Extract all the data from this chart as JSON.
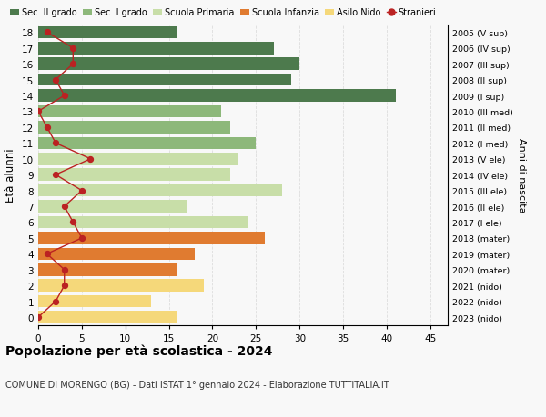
{
  "ages": [
    0,
    1,
    2,
    3,
    4,
    5,
    6,
    7,
    8,
    9,
    10,
    11,
    12,
    13,
    14,
    15,
    16,
    17,
    18
  ],
  "right_labels": [
    "2023 (nido)",
    "2022 (nido)",
    "2021 (nido)",
    "2020 (mater)",
    "2019 (mater)",
    "2018 (mater)",
    "2017 (I ele)",
    "2016 (II ele)",
    "2015 (III ele)",
    "2014 (IV ele)",
    "2013 (V ele)",
    "2012 (I med)",
    "2011 (II med)",
    "2010 (III med)",
    "2009 (I sup)",
    "2008 (II sup)",
    "2007 (III sup)",
    "2006 (IV sup)",
    "2005 (V sup)"
  ],
  "bar_values": [
    16,
    13,
    19,
    16,
    18,
    26,
    24,
    17,
    28,
    22,
    23,
    25,
    22,
    21,
    41,
    29,
    30,
    27,
    16
  ],
  "bar_colors": [
    "#f5d87a",
    "#f5d87a",
    "#f5d87a",
    "#e07b30",
    "#e07b30",
    "#e07b30",
    "#c8dea8",
    "#c8dea8",
    "#c8dea8",
    "#c8dea8",
    "#c8dea8",
    "#8db87a",
    "#8db87a",
    "#8db87a",
    "#4d7a4d",
    "#4d7a4d",
    "#4d7a4d",
    "#4d7a4d",
    "#4d7a4d"
  ],
  "stranieri_values": [
    0,
    2,
    3,
    3,
    1,
    5,
    4,
    3,
    5,
    2,
    6,
    2,
    1,
    0,
    3,
    2,
    4,
    4,
    1
  ],
  "legend_labels": [
    "Sec. II grado",
    "Sec. I grado",
    "Scuola Primaria",
    "Scuola Infanzia",
    "Asilo Nido",
    "Stranieri"
  ],
  "legend_colors": [
    "#4d7a4d",
    "#8db87a",
    "#c8dea8",
    "#e07b30",
    "#f5d87a",
    "#bb2222"
  ],
  "title_bold": "Popolazione per età scolastica - 2024",
  "subtitle": "COMUNE DI MORENGO (BG) - Dati ISTAT 1° gennaio 2024 - Elaborazione TUTTITALIA.IT",
  "ylabel": "Età alunni",
  "right_ylabel": "Anni di nascita",
  "xlim": [
    0,
    47
  ],
  "xticks": [
    0,
    5,
    10,
    15,
    20,
    25,
    30,
    35,
    40,
    45
  ],
  "background_color": "#f8f8f8",
  "grid_color": "#dddddd"
}
